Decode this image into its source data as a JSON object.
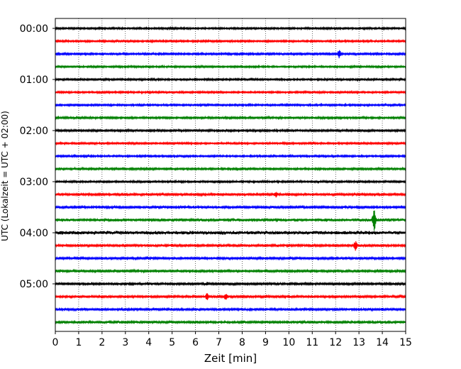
{
  "chart_data": {
    "type": "line",
    "title": "",
    "xlabel": "Zeit  [min]",
    "ylabel": "UTC (Lokalzeit = UTC + 02:00)",
    "xlim": [
      0,
      15
    ],
    "x_ticks": [
      0,
      1,
      2,
      3,
      4,
      5,
      6,
      7,
      8,
      9,
      10,
      11,
      12,
      13,
      14,
      15
    ],
    "y_tick_labels": [
      "00:00",
      "01:00",
      "02:00",
      "03:00",
      "04:00",
      "05:00"
    ],
    "grid": "vertical dotted",
    "trace_colors": [
      "#000000",
      "#ff0000",
      "#0000ff",
      "#008000"
    ],
    "traces": [
      {
        "start": "00:00",
        "color": "#000000",
        "noise": 1.0,
        "events": []
      },
      {
        "start": "00:15",
        "color": "#ff0000",
        "noise": 1.0,
        "events": []
      },
      {
        "start": "00:30",
        "color": "#0000ff",
        "noise": 1.1,
        "events": [
          {
            "minute": 12.15,
            "amplitude": 7
          },
          {
            "minute": 14.4,
            "amplitude": 2
          }
        ]
      },
      {
        "start": "00:45",
        "color": "#008000",
        "noise": 1.0,
        "events": []
      },
      {
        "start": "01:00",
        "color": "#000000",
        "noise": 1.0,
        "events": []
      },
      {
        "start": "01:15",
        "color": "#ff0000",
        "noise": 1.0,
        "events": []
      },
      {
        "start": "01:30",
        "color": "#0000ff",
        "noise": 1.0,
        "events": []
      },
      {
        "start": "01:45",
        "color": "#008000",
        "noise": 1.1,
        "events": []
      },
      {
        "start": "02:00",
        "color": "#000000",
        "noise": 1.1,
        "events": []
      },
      {
        "start": "02:15",
        "color": "#ff0000",
        "noise": 1.0,
        "events": []
      },
      {
        "start": "02:30",
        "color": "#0000ff",
        "noise": 1.0,
        "events": []
      },
      {
        "start": "02:45",
        "color": "#008000",
        "noise": 1.1,
        "events": []
      },
      {
        "start": "03:00",
        "color": "#000000",
        "noise": 1.0,
        "events": []
      },
      {
        "start": "03:15",
        "color": "#ff0000",
        "noise": 1.2,
        "events": [
          {
            "minute": 9.45,
            "amplitude": 5
          }
        ]
      },
      {
        "start": "03:30",
        "color": "#0000ff",
        "noise": 1.3,
        "events": [
          {
            "minute": 8.4,
            "amplitude": 2
          }
        ]
      },
      {
        "start": "03:45",
        "color": "#008000",
        "noise": 1.6,
        "events": [
          {
            "minute": 13.65,
            "amplitude": 18
          },
          {
            "minute": 11.6,
            "amplitude": 3
          }
        ]
      },
      {
        "start": "04:00",
        "color": "#000000",
        "noise": 2.0,
        "events": [
          {
            "minute": 0.3,
            "amplitude": 3
          },
          {
            "minute": 7.1,
            "amplitude": 3
          }
        ]
      },
      {
        "start": "04:15",
        "color": "#ff0000",
        "noise": 1.3,
        "events": [
          {
            "minute": 12.85,
            "amplitude": 8
          },
          {
            "minute": 5.0,
            "amplitude": 3
          }
        ]
      },
      {
        "start": "04:30",
        "color": "#0000ff",
        "noise": 1.2,
        "events": []
      },
      {
        "start": "04:45",
        "color": "#008000",
        "noise": 1.2,
        "events": []
      },
      {
        "start": "05:00",
        "color": "#000000",
        "noise": 1.2,
        "events": [
          {
            "minute": 6.5,
            "amplitude": 3
          }
        ]
      },
      {
        "start": "05:15",
        "color": "#ff0000",
        "noise": 1.2,
        "events": [
          {
            "minute": 6.5,
            "amplitude": 6
          },
          {
            "minute": 7.3,
            "amplitude": 6
          }
        ]
      },
      {
        "start": "05:30",
        "color": "#0000ff",
        "noise": 1.3,
        "events": [
          {
            "minute": 14.0,
            "amplitude": 3
          },
          {
            "minute": 12.6,
            "amplitude": 2
          }
        ]
      },
      {
        "start": "05:45",
        "color": "#008000",
        "noise": 1.4,
        "events": [
          {
            "minute": 11.3,
            "amplitude": 2
          }
        ]
      }
    ]
  }
}
